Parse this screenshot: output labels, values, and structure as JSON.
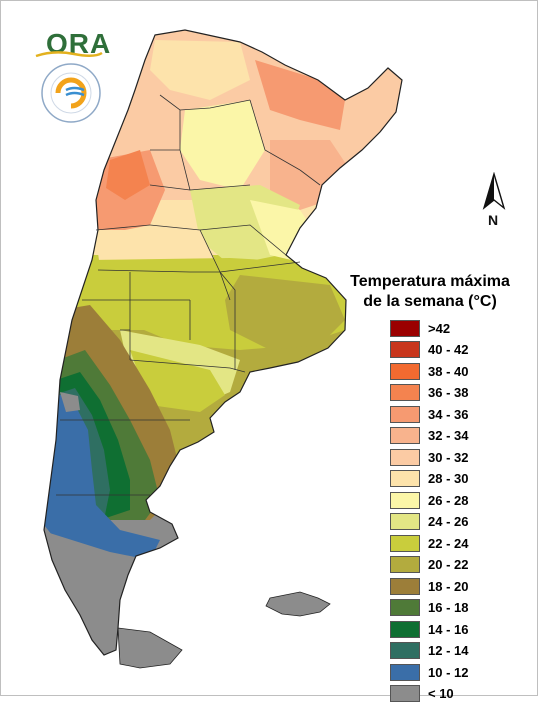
{
  "legend": {
    "title_line1": "Temperatura máxima",
    "title_line2": "de la semana (°C)",
    "items": [
      {
        "label": ">42",
        "color": "#9b0000"
      },
      {
        "label": "40 - 42",
        "color": "#c8361c"
      },
      {
        "label": "38 - 40",
        "color": "#f26a30"
      },
      {
        "label": "36 - 38",
        "color": "#f4834f"
      },
      {
        "label": "34 - 36",
        "color": "#f69a71"
      },
      {
        "label": "32 - 34",
        "color": "#f8b38d"
      },
      {
        "label": "30 - 32",
        "color": "#fbcba4"
      },
      {
        "label": "28 - 30",
        "color": "#fde3ab"
      },
      {
        "label": "26 - 28",
        "color": "#fbf6a8"
      },
      {
        "label": "24 - 26",
        "color": "#e3e685"
      },
      {
        "label": "22 - 24",
        "color": "#c9cd3c"
      },
      {
        "label": "20 - 22",
        "color": "#b3ab3e"
      },
      {
        "label": "18 - 20",
        "color": "#9c7e39"
      },
      {
        "label": "16 - 18",
        "color": "#4f7a38"
      },
      {
        "label": "14 - 16",
        "color": "#0f6f32"
      },
      {
        "label": "12 - 14",
        "color": "#2f6f62"
      },
      {
        "label": "10 - 12",
        "color": "#3a6ea8"
      },
      {
        "label": "< 10",
        "color": "#8c8c8c"
      }
    ]
  },
  "north_arrow": {
    "label": "N"
  },
  "logo": {
    "text": "ORA"
  }
}
